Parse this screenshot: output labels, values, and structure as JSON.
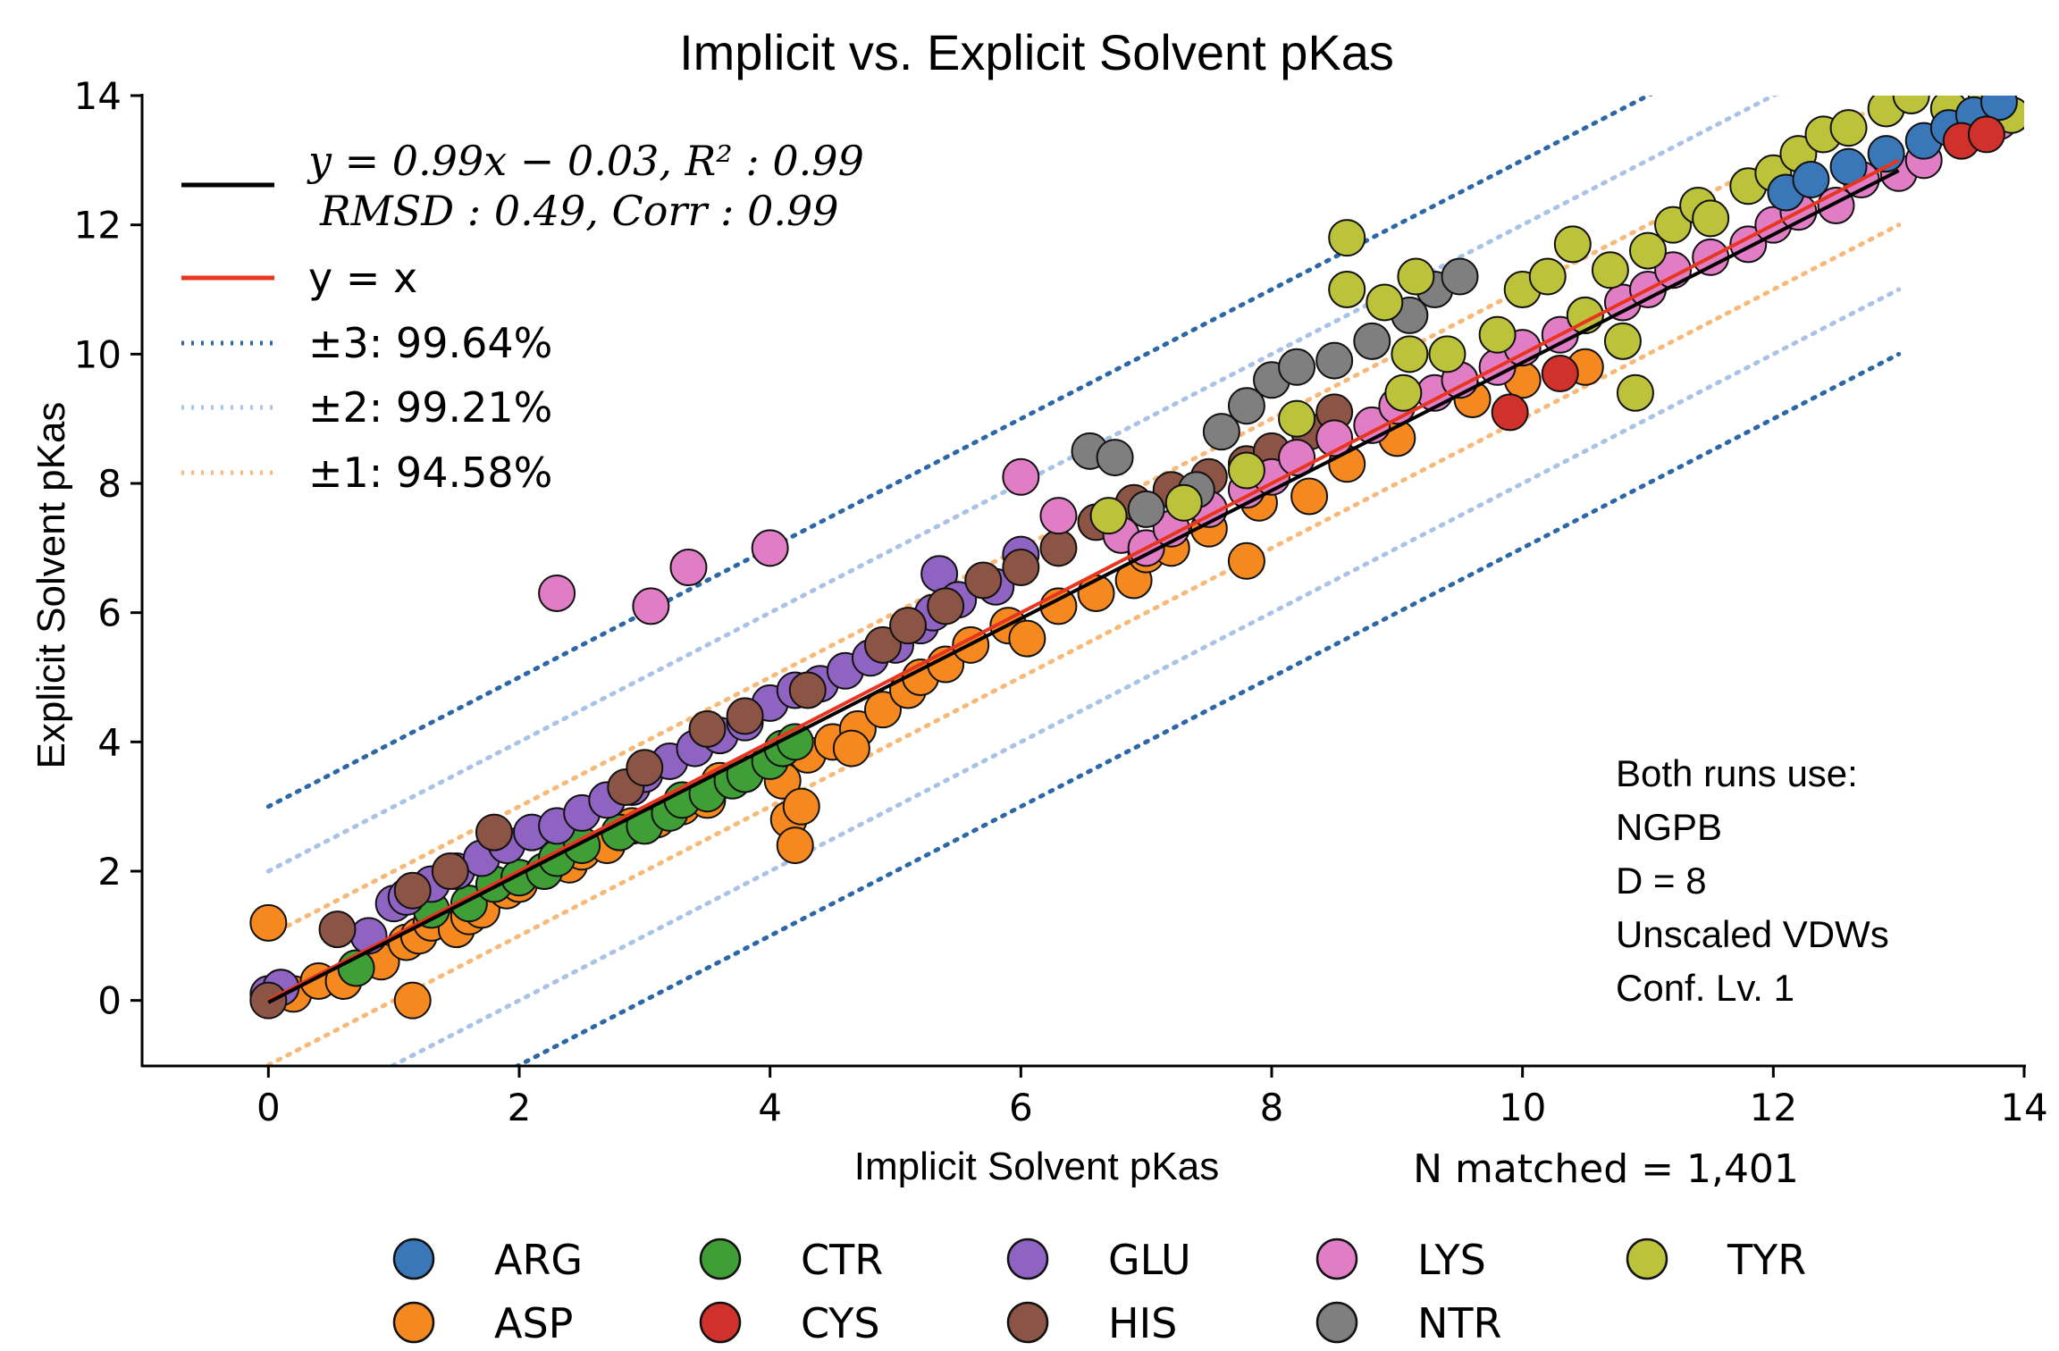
{
  "colors": {
    "ARG": "#3a77b8",
    "ASP": "#f5891f",
    "CTR": "#3f9e35",
    "CYS": "#d0312b",
    "GLU": "#8f63c1",
    "HIS": "#8b5445",
    "LYS": "#e07dc5",
    "NTR": "#7f7f7f",
    "TYR": "#bcc23a",
    "fit_line": "#000000",
    "identity_line": "#e8351f",
    "band3": "#2c68a8",
    "band2": "#a9c3e6",
    "band1": "#f8b978"
  },
  "chart_data": {
    "type": "scatter",
    "title": "Implicit vs. Explicit Solvent pKas",
    "xlabel": "Implicit Solvent pKas",
    "ylabel": "Explicit Solvent pKas",
    "xlim": [
      -1,
      14
    ],
    "ylim": [
      -1,
      14
    ],
    "xticks": [
      "0",
      "2",
      "4",
      "6",
      "8",
      "10",
      "12",
      "14"
    ],
    "yticks": [
      "0",
      "2",
      "4",
      "6",
      "8",
      "10",
      "12",
      "14"
    ],
    "grid": false,
    "legend_placement": "upper-left",
    "fit": {
      "slope": 0.99,
      "intercept": -0.03,
      "x_range": [
        0,
        13
      ]
    },
    "legend": {
      "fit_line1": "y = 0.99x − 0.03, R² : 0.99",
      "fit_line2": "RMSD : 0.49, Corr : 0.99",
      "identity": "y = x",
      "band3": "±3:   99.64%",
      "band2": "±2:   99.21%",
      "band1": "±1:   94.58%"
    },
    "annotation": [
      "Both runs use:",
      "NGPB",
      "D = 8",
      "Unscaled VDWs",
      "Conf. Lv. 1"
    ],
    "n_matched": "N matched = 1,401",
    "residue_legend": [
      "ARG",
      "ASP",
      "CTR",
      "CYS",
      "GLU",
      "HIS",
      "LYS",
      "NTR",
      "TYR"
    ],
    "series": [
      {
        "name": "ASP",
        "points": [
          [
            0.0,
            1.2
          ],
          [
            0.1,
            0.2
          ],
          [
            0.2,
            0.1
          ],
          [
            0.4,
            0.3
          ],
          [
            0.6,
            0.3
          ],
          [
            0.9,
            0.6
          ],
          [
            1.1,
            0.9
          ],
          [
            1.15,
            0.0
          ],
          [
            1.2,
            1.0
          ],
          [
            1.3,
            1.2
          ],
          [
            1.5,
            1.1
          ],
          [
            1.6,
            1.3
          ],
          [
            1.7,
            1.4
          ],
          [
            1.9,
            1.7
          ],
          [
            2.0,
            1.8
          ],
          [
            2.2,
            2.0
          ],
          [
            2.4,
            2.1
          ],
          [
            2.5,
            2.3
          ],
          [
            2.7,
            2.4
          ],
          [
            2.9,
            2.7
          ],
          [
            3.1,
            2.8
          ],
          [
            3.3,
            3.0
          ],
          [
            3.5,
            3.1
          ],
          [
            3.6,
            3.4
          ],
          [
            3.8,
            3.5
          ],
          [
            4.0,
            3.7
          ],
          [
            4.1,
            3.4
          ],
          [
            4.15,
            2.8
          ],
          [
            4.2,
            2.4
          ],
          [
            4.25,
            3.0
          ],
          [
            4.3,
            3.8
          ],
          [
            4.5,
            4.0
          ],
          [
            4.7,
            4.2
          ],
          [
            4.65,
            3.9
          ],
          [
            4.9,
            4.5
          ],
          [
            5.1,
            4.8
          ],
          [
            5.2,
            5.0
          ],
          [
            5.4,
            5.2
          ],
          [
            5.6,
            5.5
          ],
          [
            5.9,
            5.8
          ],
          [
            6.05,
            5.6
          ],
          [
            6.3,
            6.1
          ],
          [
            6.6,
            6.3
          ],
          [
            6.9,
            6.5
          ],
          [
            7.0,
            6.9
          ],
          [
            7.2,
            7.0
          ],
          [
            7.5,
            7.3
          ],
          [
            7.8,
            6.8
          ],
          [
            7.9,
            7.7
          ],
          [
            8.3,
            7.8
          ],
          [
            8.6,
            8.3
          ],
          [
            9.0,
            8.7
          ],
          [
            9.6,
            9.3
          ],
          [
            10.0,
            9.6
          ],
          [
            10.5,
            9.8
          ]
        ]
      },
      {
        "name": "CTR",
        "points": [
          [
            0.7,
            0.5
          ],
          [
            1.3,
            1.4
          ],
          [
            1.6,
            1.5
          ],
          [
            1.8,
            1.8
          ],
          [
            2.0,
            1.9
          ],
          [
            2.2,
            2.0
          ],
          [
            2.3,
            2.2
          ],
          [
            2.5,
            2.4
          ],
          [
            2.8,
            2.6
          ],
          [
            3.0,
            2.7
          ],
          [
            3.2,
            2.9
          ],
          [
            3.3,
            3.1
          ],
          [
            3.5,
            3.2
          ],
          [
            3.7,
            3.4
          ],
          [
            3.8,
            3.5
          ],
          [
            4.0,
            3.7
          ],
          [
            4.1,
            3.9
          ],
          [
            4.2,
            4.0
          ]
        ]
      },
      {
        "name": "GLU",
        "points": [
          [
            0.0,
            0.1
          ],
          [
            0.1,
            0.2
          ],
          [
            0.8,
            1.0
          ],
          [
            1.0,
            1.5
          ],
          [
            1.1,
            1.6
          ],
          [
            1.3,
            1.8
          ],
          [
            1.5,
            2.0
          ],
          [
            1.7,
            2.2
          ],
          [
            1.9,
            2.4
          ],
          [
            2.1,
            2.6
          ],
          [
            2.3,
            2.7
          ],
          [
            2.5,
            2.9
          ],
          [
            2.7,
            3.1
          ],
          [
            2.9,
            3.3
          ],
          [
            3.0,
            3.5
          ],
          [
            3.2,
            3.7
          ],
          [
            3.4,
            3.9
          ],
          [
            3.6,
            4.1
          ],
          [
            3.8,
            4.3
          ],
          [
            4.0,
            4.6
          ],
          [
            4.2,
            4.8
          ],
          [
            4.4,
            4.9
          ],
          [
            4.6,
            5.1
          ],
          [
            4.8,
            5.3
          ],
          [
            5.0,
            5.5
          ],
          [
            5.2,
            5.8
          ],
          [
            5.3,
            6.0
          ],
          [
            5.35,
            6.6
          ],
          [
            5.5,
            6.2
          ],
          [
            5.8,
            6.4
          ],
          [
            6.0,
            6.9
          ]
        ]
      },
      {
        "name": "HIS",
        "points": [
          [
            0.0,
            0.0
          ],
          [
            0.55,
            1.1
          ],
          [
            1.15,
            1.7
          ],
          [
            1.45,
            2.0
          ],
          [
            1.8,
            2.6
          ],
          [
            2.85,
            3.3
          ],
          [
            3.0,
            3.6
          ],
          [
            3.5,
            4.2
          ],
          [
            3.8,
            4.4
          ],
          [
            4.3,
            4.8
          ],
          [
            4.9,
            5.5
          ],
          [
            5.1,
            5.8
          ],
          [
            5.4,
            6.1
          ],
          [
            5.7,
            6.5
          ],
          [
            6.0,
            6.7
          ],
          [
            6.3,
            7.0
          ],
          [
            6.6,
            7.4
          ],
          [
            6.9,
            7.7
          ],
          [
            7.2,
            7.9
          ],
          [
            7.5,
            8.1
          ],
          [
            7.8,
            8.3
          ],
          [
            8.0,
            8.5
          ],
          [
            8.3,
            8.8
          ],
          [
            8.5,
            9.1
          ]
        ]
      },
      {
        "name": "LYS",
        "points": [
          [
            2.3,
            6.3
          ],
          [
            3.05,
            6.1
          ],
          [
            3.35,
            6.7
          ],
          [
            4.0,
            7.0
          ],
          [
            6.0,
            8.1
          ],
          [
            6.3,
            7.5
          ],
          [
            6.8,
            7.2
          ],
          [
            7.0,
            7.0
          ],
          [
            7.2,
            7.3
          ],
          [
            7.5,
            7.6
          ],
          [
            7.8,
            7.9
          ],
          [
            8.0,
            8.1
          ],
          [
            8.2,
            8.4
          ],
          [
            8.5,
            8.7
          ],
          [
            8.8,
            8.9
          ],
          [
            9.0,
            9.2
          ],
          [
            9.3,
            9.4
          ],
          [
            9.5,
            9.6
          ],
          [
            9.8,
            9.8
          ],
          [
            10.0,
            10.1
          ],
          [
            10.3,
            10.3
          ],
          [
            10.5,
            10.6
          ],
          [
            10.8,
            10.8
          ],
          [
            11.0,
            11.0
          ],
          [
            11.2,
            11.3
          ],
          [
            11.5,
            11.5
          ],
          [
            11.8,
            11.7
          ],
          [
            12.0,
            12.0
          ],
          [
            12.2,
            12.2
          ],
          [
            12.5,
            12.3
          ],
          [
            12.7,
            12.7
          ],
          [
            13.0,
            12.8
          ],
          [
            13.2,
            13.0
          ],
          [
            13.5,
            13.3
          ],
          [
            13.8,
            13.6
          ]
        ]
      },
      {
        "name": "NTR",
        "points": [
          [
            6.55,
            8.5
          ],
          [
            6.75,
            8.4
          ],
          [
            7.0,
            7.6
          ],
          [
            7.4,
            7.9
          ],
          [
            7.6,
            8.8
          ],
          [
            7.8,
            9.2
          ],
          [
            8.0,
            9.6
          ],
          [
            8.2,
            9.8
          ],
          [
            8.5,
            9.9
          ],
          [
            8.8,
            10.2
          ],
          [
            9.1,
            10.6
          ],
          [
            9.3,
            11.0
          ],
          [
            9.5,
            11.2
          ]
        ]
      },
      {
        "name": "TYR",
        "points": [
          [
            6.7,
            7.5
          ],
          [
            7.3,
            7.7
          ],
          [
            7.8,
            8.2
          ],
          [
            8.2,
            9.0
          ],
          [
            8.6,
            11.8
          ],
          [
            8.6,
            11.0
          ],
          [
            8.9,
            10.8
          ],
          [
            9.05,
            9.4
          ],
          [
            9.1,
            10.0
          ],
          [
            9.15,
            11.2
          ],
          [
            9.4,
            10.0
          ],
          [
            9.8,
            10.3
          ],
          [
            10.0,
            11.0
          ],
          [
            10.2,
            11.2
          ],
          [
            10.4,
            11.7
          ],
          [
            10.5,
            10.6
          ],
          [
            10.7,
            11.3
          ],
          [
            10.8,
            10.2
          ],
          [
            10.9,
            9.4
          ],
          [
            11.0,
            11.6
          ],
          [
            11.2,
            12.0
          ],
          [
            11.4,
            12.3
          ],
          [
            11.5,
            12.1
          ],
          [
            11.8,
            12.6
          ],
          [
            12.0,
            12.8
          ],
          [
            12.2,
            13.1
          ],
          [
            12.4,
            13.4
          ],
          [
            12.6,
            13.5
          ],
          [
            12.9,
            13.8
          ],
          [
            13.1,
            14.0
          ],
          [
            13.4,
            13.8
          ],
          [
            13.7,
            14.0
          ],
          [
            13.9,
            13.7
          ]
        ]
      },
      {
        "name": "ARG",
        "points": [
          [
            12.1,
            12.5
          ],
          [
            12.3,
            12.7
          ],
          [
            12.6,
            12.9
          ],
          [
            12.9,
            13.1
          ],
          [
            13.2,
            13.3
          ],
          [
            13.4,
            13.5
          ],
          [
            13.6,
            13.7
          ],
          [
            13.8,
            13.9
          ]
        ]
      },
      {
        "name": "CYS",
        "points": [
          [
            9.9,
            9.1
          ],
          [
            10.3,
            9.7
          ],
          [
            13.5,
            13.3
          ],
          [
            13.7,
            13.4
          ]
        ]
      }
    ]
  }
}
